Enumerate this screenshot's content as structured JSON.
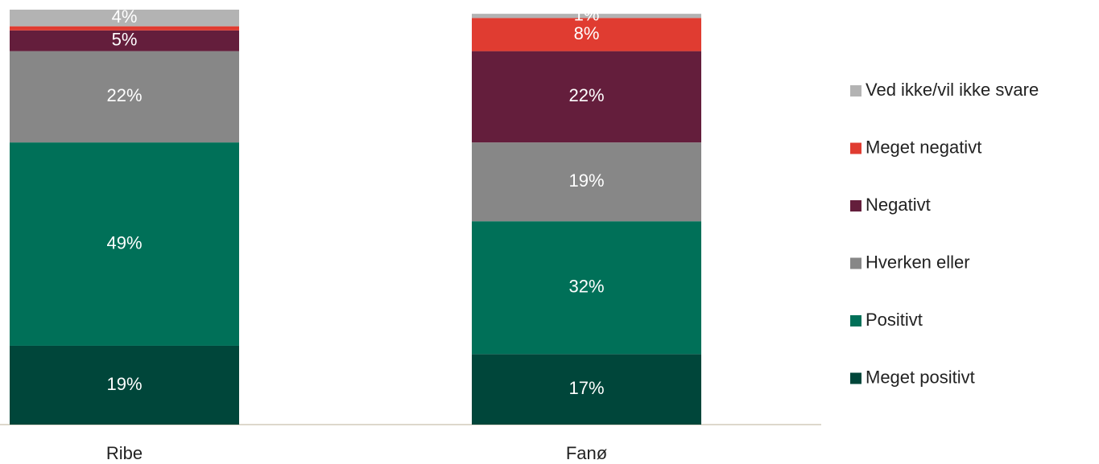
{
  "chart_data": {
    "type": "stacked_bar",
    "categories": [
      "Ribe",
      "Fanø"
    ],
    "ylim": [
      0,
      100
    ],
    "legend": "right",
    "series": [
      {
        "name": "Meget positivt",
        "color": "#00463a",
        "values": [
          19,
          17
        ],
        "value_labels": [
          "19%",
          "17%"
        ]
      },
      {
        "name": "Positivt",
        "color": "#007058",
        "values": [
          49,
          32
        ],
        "value_labels": [
          "49%",
          "32%"
        ]
      },
      {
        "name": "Hverken eller",
        "color": "#878787",
        "values": [
          22,
          19
        ],
        "value_labels": [
          "22%",
          "19%"
        ]
      },
      {
        "name": "Negativt",
        "color": "#641e3c",
        "values": [
          5,
          22
        ],
        "value_labels": [
          "5%",
          "22%"
        ]
      },
      {
        "name": "Meget negativt",
        "color": "#e03c31",
        "values": [
          1,
          8
        ],
        "value_labels": [
          null,
          "8%"
        ]
      },
      {
        "name": "Ved ikke/vil ikke svare",
        "color": "#b3b3b3",
        "values": [
          4,
          1
        ],
        "value_labels": [
          "4%",
          "1%"
        ]
      }
    ]
  }
}
